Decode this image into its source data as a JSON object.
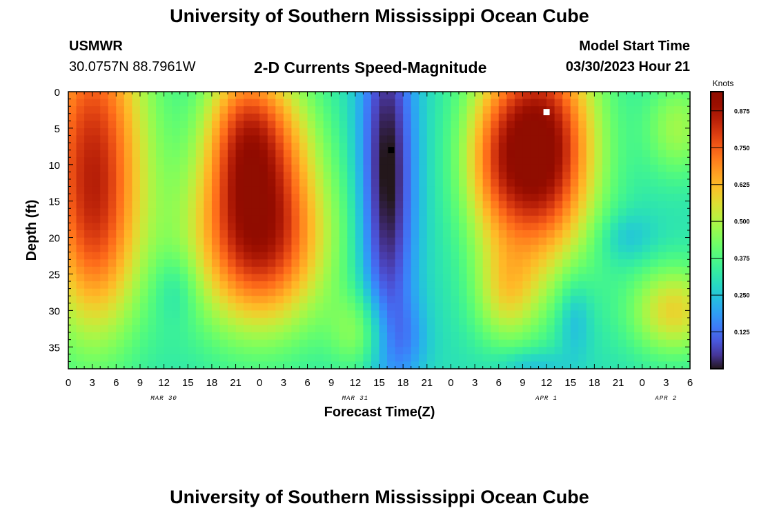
{
  "header": {
    "title": "University of Southern Mississippi Ocean Cube",
    "station_id": "USMWR",
    "station_coords": "30.0757N  88.7961W",
    "product_title": "2-D Currents Speed-Magnitude",
    "model_start_label": "Model Start Time",
    "model_start_value": "03/30/2023 Hour 21"
  },
  "footer": {
    "title": "University of Southern Mississippi Ocean Cube"
  },
  "chart_data": {
    "type": "heatmap",
    "title": "2-D Currents Speed-Magnitude",
    "xlabel": "Forecast Time(Z)",
    "ylabel": "Depth (ft)",
    "x_hours_range": [
      0,
      78
    ],
    "xlim": [
      "2023-03-30 00Z",
      "2023-04-02 06Z"
    ],
    "x_tick_labels": [
      "0",
      "3",
      "6",
      "9",
      "12",
      "15",
      "18",
      "21",
      "0",
      "3",
      "6",
      "9",
      "12",
      "15",
      "18",
      "21",
      "0",
      "3",
      "6",
      "9",
      "12",
      "15",
      "18",
      "21",
      "0",
      "3",
      "6"
    ],
    "date_labels": [
      {
        "label": "MAR 30",
        "hour": 12
      },
      {
        "label": "MAR 31",
        "hour": 36
      },
      {
        "label": "APR 1",
        "hour": 60
      },
      {
        "label": "APR 2",
        "hour": 75
      }
    ],
    "ylim": [
      0,
      38
    ],
    "y_inverted": true,
    "y_ticks": [
      0,
      5,
      10,
      15,
      20,
      25,
      30,
      35
    ],
    "colorbar": {
      "label": "Knots",
      "range": [
        0,
        0.94
      ],
      "ticks": [
        0.875,
        0.75,
        0.625,
        0.5,
        0.375,
        0.25,
        0.125
      ],
      "tick_labels": [
        "0.875",
        "0.750",
        "0.625",
        "0.500",
        "0.375",
        "0.250",
        "0.125"
      ],
      "colormap": "turbo"
    },
    "features": [
      {
        "type": "max",
        "time_hour": 60,
        "depth_ft": 2.8,
        "value": 0.93
      },
      {
        "type": "min",
        "time_hour": 40.5,
        "depth_ft": 8,
        "value": 0.02
      }
    ],
    "speed_field_blobs": [
      {
        "t": 3,
        "d": 8,
        "st": 5,
        "sd": 16,
        "a": 0.5
      },
      {
        "t": 3.5,
        "d": 22,
        "st": 3.5,
        "sd": 9,
        "a": 0.12
      },
      {
        "t": 24,
        "d": 20,
        "st": 6,
        "sd": 9,
        "a": 0.56
      },
      {
        "t": 21.5,
        "d": 5,
        "st": 3.5,
        "sd": 8,
        "a": 0.3
      },
      {
        "t": 26,
        "d": 5,
        "st": 4,
        "sd": 7,
        "a": 0.2
      },
      {
        "t": 36.5,
        "d": 33,
        "st": 2.5,
        "sd": 4,
        "a": 0.16
      },
      {
        "t": 59,
        "d": 8,
        "st": 5,
        "sd": 11,
        "a": 0.66
      },
      {
        "t": 53,
        "d": 10,
        "st": 3,
        "sd": 8,
        "a": 0.15
      },
      {
        "t": 55,
        "d": 28,
        "st": 3,
        "sd": 5,
        "a": 0.2
      },
      {
        "t": 76,
        "d": 30,
        "st": 4,
        "sd": 4.5,
        "a": 0.28
      },
      {
        "t": 76.5,
        "d": 5,
        "st": 3,
        "sd": 5,
        "a": 0.18
      },
      {
        "t": 40,
        "d": 12,
        "st": 2.5,
        "sd": 18,
        "a": -0.32
      },
      {
        "t": 13.5,
        "d": 27,
        "st": 2,
        "sd": 3.5,
        "a": -0.08
      },
      {
        "t": 42.5,
        "d": 34,
        "st": 2,
        "sd": 4,
        "a": -0.08
      },
      {
        "t": 63.5,
        "d": 31,
        "st": 1.5,
        "sd": 4,
        "a": -0.1
      },
      {
        "t": 70,
        "d": 20,
        "st": 2.5,
        "sd": 2.5,
        "a": -0.08
      },
      {
        "t": 58,
        "d": 37.5,
        "st": 3,
        "sd": 1.5,
        "a": -0.08
      }
    ],
    "speed_field_base": 0.3
  }
}
